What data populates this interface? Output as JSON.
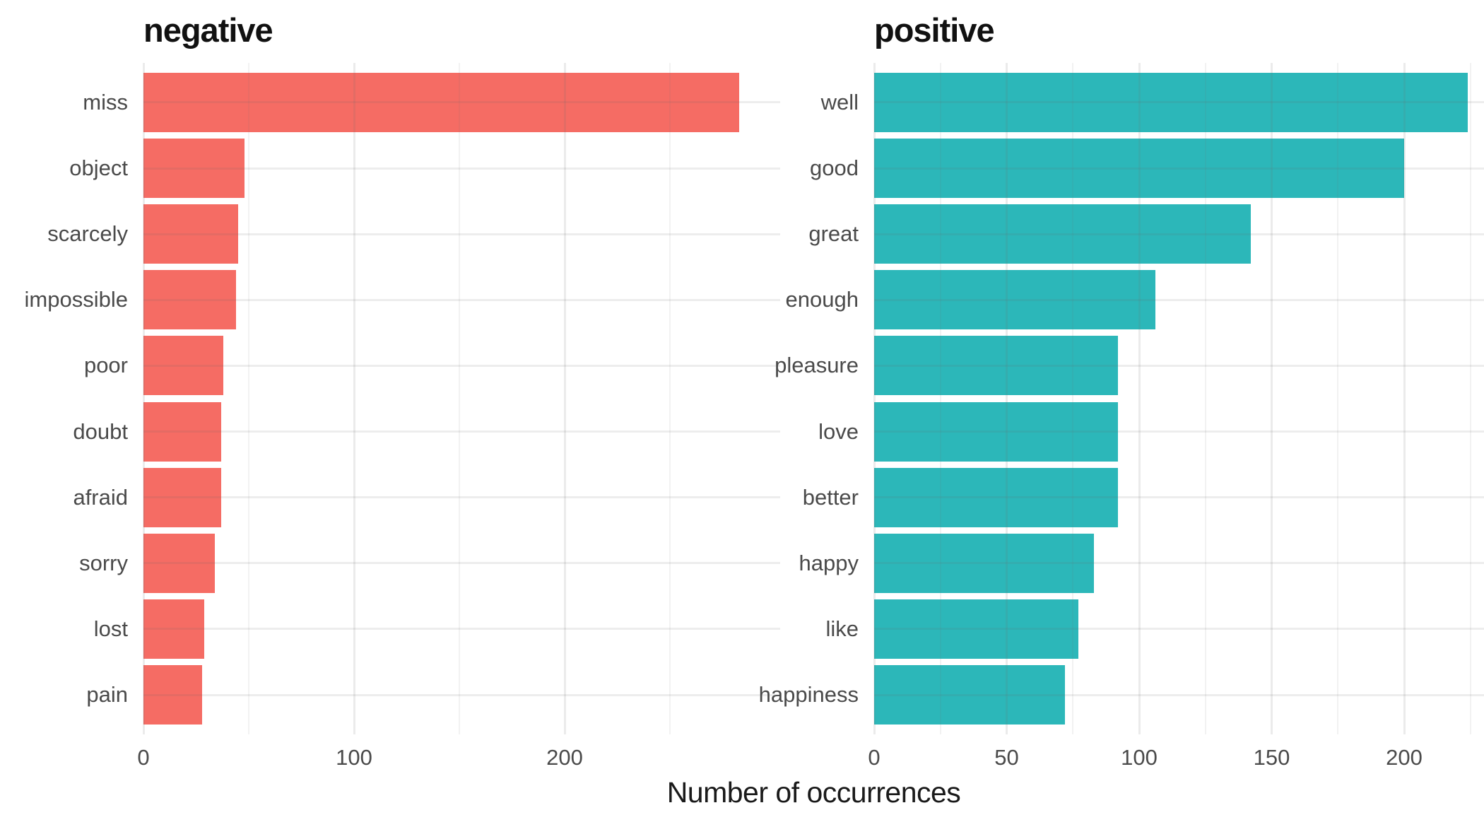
{
  "chart_data": {
    "type": "bar",
    "orientation": "horizontal",
    "xlabel": "Number of occurrences",
    "grid": true,
    "background_color": "#FFFFFF",
    "gridline_color": "#E9E9E9",
    "tick_label_color": "#4A4A4A",
    "facets": [
      {
        "label": "negative",
        "bar_color": "#F56C64",
        "categories": [
          "miss",
          "object",
          "scarcely",
          "impossible",
          "poor",
          "doubt",
          "afraid",
          "sorry",
          "lost",
          "pain"
        ],
        "values": [
          283,
          48,
          45,
          44,
          38,
          37,
          37,
          34,
          29,
          28
        ],
        "x_ticks": [
          0,
          100,
          200
        ],
        "x_minor_ticks": [
          50,
          150,
          250
        ],
        "xlim": [
          0,
          302
        ]
      },
      {
        "label": "positive",
        "bar_color": "#2CB7B9",
        "categories": [
          "well",
          "good",
          "great",
          "enough",
          "pleasure",
          "love",
          "better",
          "happy",
          "like",
          "happiness"
        ],
        "values": [
          224,
          200,
          142,
          106,
          92,
          92,
          92,
          83,
          77,
          72
        ],
        "x_ticks": [
          0,
          50,
          100,
          150,
          200
        ],
        "x_minor_ticks": [
          25,
          75,
          125,
          175,
          225
        ],
        "xlim": [
          0,
          230
        ]
      }
    ],
    "legend": "none"
  }
}
